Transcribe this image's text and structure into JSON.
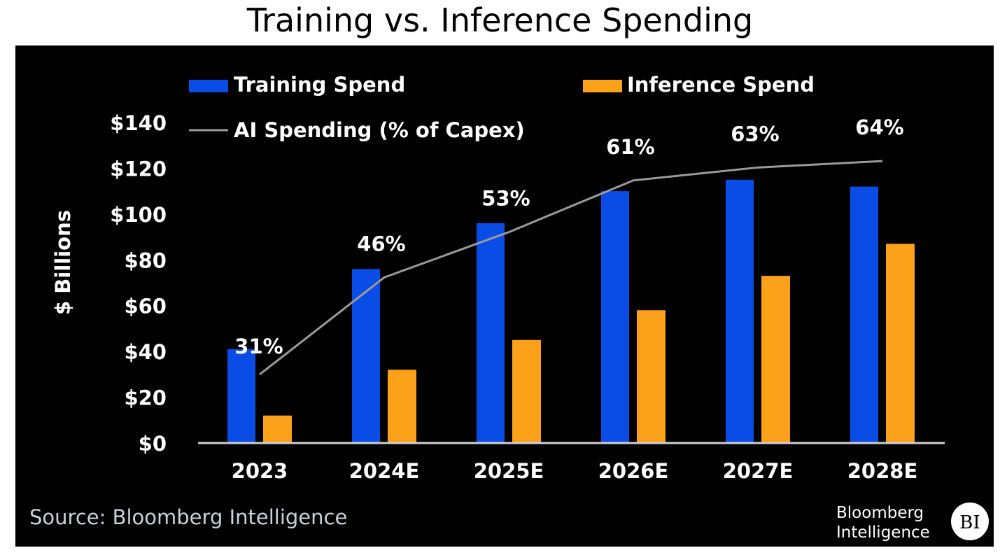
{
  "chart_data": {
    "type": "bar",
    "title": "Training vs. Inference Spending",
    "ylabel": "$ Billions",
    "xlabel": "",
    "categories": [
      "2023",
      "2024E",
      "2025E",
      "2026E",
      "2027E",
      "2028E"
    ],
    "ylim": [
      0,
      140
    ],
    "yticks": [
      "$0",
      "$20",
      "$40",
      "$60",
      "$80",
      "$100",
      "$120",
      "$140"
    ],
    "series": [
      {
        "name": "Training Spend",
        "type": "bar",
        "color": "#0a4de6",
        "values": [
          41,
          76,
          96,
          110,
          115,
          112
        ]
      },
      {
        "name": "Inference Spend",
        "type": "bar",
        "color": "#fca21a",
        "values": [
          12,
          32,
          45,
          58,
          73,
          87
        ]
      },
      {
        "name": "AI Spending (% of Capex)",
        "type": "line",
        "color": "#9a9a9a",
        "values": [
          31,
          46,
          53,
          61,
          63,
          64
        ],
        "labels": [
          "31%",
          "46%",
          "53%",
          "61%",
          "63%",
          "64%"
        ]
      }
    ],
    "grid": false,
    "legend": "top",
    "background": "#000000"
  },
  "source": "Source: Bloomberg Intelligence",
  "logo": {
    "line1": "Bloomberg",
    "line2": "Intelligence",
    "badge": "BI"
  }
}
